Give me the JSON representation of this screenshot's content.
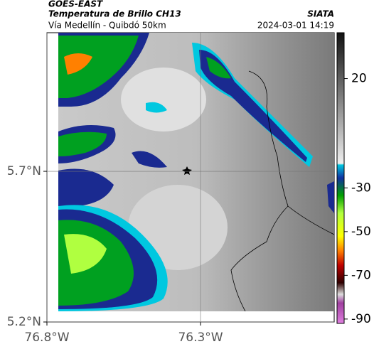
{
  "header": {
    "title": "GOES-EAST",
    "subtitle": "Temperatura de Brillo CH13",
    "location": "Vía Medellín - Quibdó 50km",
    "source": "SIATA",
    "datetime": "2024-03-01 14:19"
  },
  "map": {
    "xlim": [
      -76.8,
      -75.865
    ],
    "ylim": [
      5.2,
      6.16
    ],
    "xticks": [
      {
        "value": -76.8,
        "label": "76.8°W"
      },
      {
        "value": -76.3,
        "label": "76.3°W"
      }
    ],
    "yticks": [
      {
        "value": 5.7,
        "label": "5.7°N"
      },
      {
        "value": 5.2,
        "label": "5.2°N"
      }
    ],
    "grid": true
  },
  "colorbar": {
    "lim": [
      -92,
      41
    ],
    "ticks": [
      20,
      -30,
      -50,
      -70,
      -90
    ]
  }
}
